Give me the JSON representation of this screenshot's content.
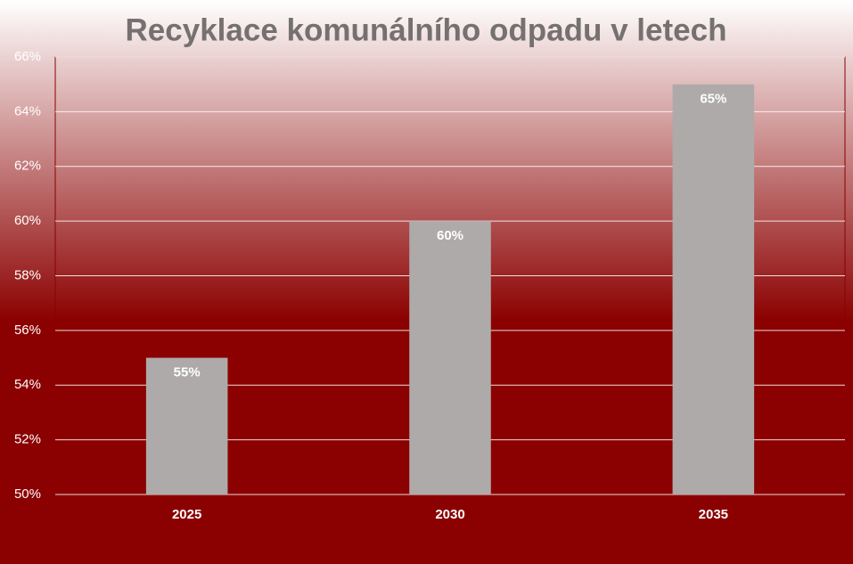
{
  "chart_data": {
    "type": "bar",
    "title": "Recyklace komunálního odpadu v letech",
    "categories": [
      "2025",
      "2030",
      "2035"
    ],
    "values": [
      55,
      60,
      65
    ],
    "value_labels": [
      "55%",
      "60%",
      "65%"
    ],
    "color": "#aeaaaa",
    "ylim": [
      50,
      66
    ],
    "yticks": [
      {
        "value": 50,
        "label": "50%"
      },
      {
        "value": 52,
        "label": "52%"
      },
      {
        "value": 54,
        "label": "54%"
      },
      {
        "value": 56,
        "label": "56%"
      },
      {
        "value": 58,
        "label": "58%"
      },
      {
        "value": 60,
        "label": "60%"
      },
      {
        "value": 62,
        "label": "62%"
      },
      {
        "value": 64,
        "label": "64%"
      },
      {
        "value": 66,
        "label": "66%"
      }
    ],
    "grid": true
  }
}
